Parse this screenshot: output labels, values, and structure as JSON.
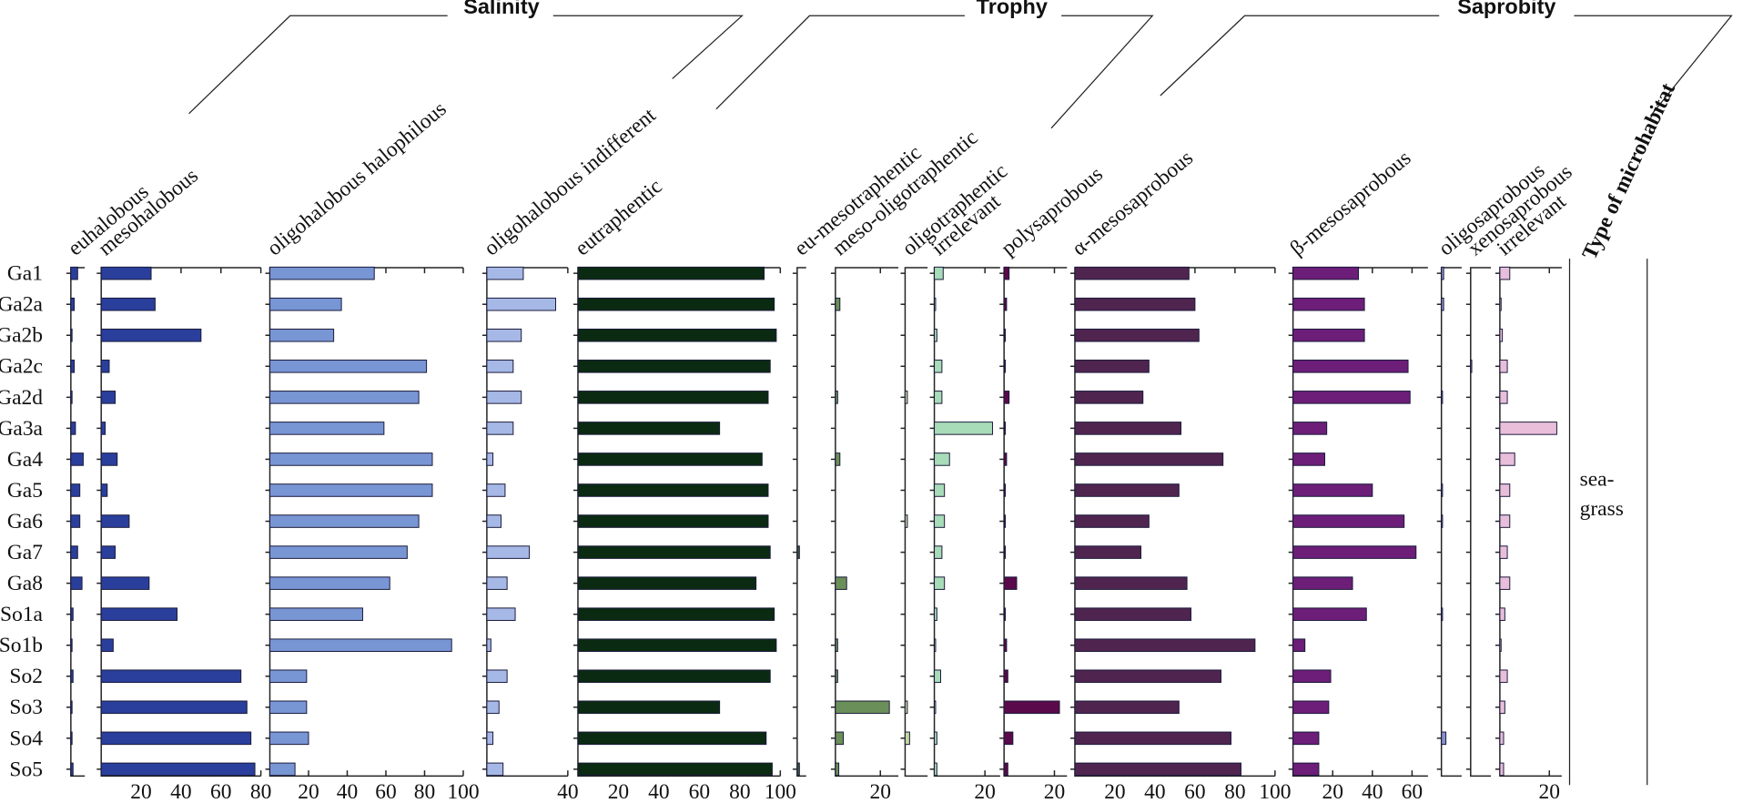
{
  "groups": [
    "Salinity",
    "Trophy",
    "Saprobity"
  ],
  "microhabitat": {
    "title": "Type of microhabitat",
    "label": [
      "sea-",
      "grass"
    ]
  },
  "chart_data": [
    {
      "type": "hbar",
      "title": "euhalobous",
      "color": "#2a3f9c",
      "xlim": [
        0,
        7
      ],
      "xticks": [],
      "categories": [
        "Ga1",
        "Ga2a",
        "Ga2b",
        "Ga2c",
        "Ga2d",
        "Ga3a",
        "Ga4",
        "Ga5",
        "Ga6",
        "Ga7",
        "Ga8",
        "So1a",
        "So1b",
        "So2",
        "So3",
        "So4",
        "So5"
      ],
      "values": [
        3.4,
        1.7,
        0.6,
        1.7,
        0.6,
        2.3,
        6.2,
        4.5,
        4.5,
        3.4,
        5.6,
        1.1,
        0.6,
        1.1,
        0.6,
        0.6,
        1.1
      ]
    },
    {
      "type": "hbar",
      "title": "mesohalobous",
      "color": "#2a3f9c",
      "xlim": [
        0,
        80
      ],
      "xticks": [
        20,
        40,
        60,
        80
      ],
      "values": [
        25,
        27,
        50,
        4,
        7,
        2,
        8,
        3,
        14,
        7,
        24,
        38,
        6,
        70,
        73,
        75,
        77
      ]
    },
    {
      "type": "hbar",
      "title": "oligohalobous halophilous",
      "color": "#7895d4",
      "xlim": [
        0,
        100
      ],
      "xticks": [
        20,
        40,
        60,
        80,
        100
      ],
      "values": [
        54,
        37,
        33,
        81,
        77,
        59,
        84,
        84,
        77,
        71,
        62,
        48,
        94,
        19,
        19,
        20,
        13
      ]
    },
    {
      "type": "hbar",
      "title": "oligohalobous indifferent",
      "color": "#a6b8e6",
      "xlim": [
        0,
        40
      ],
      "xticks": [
        40
      ],
      "values": [
        18,
        34,
        17,
        13,
        17,
        13,
        3,
        9,
        7,
        21,
        10,
        14,
        2,
        10,
        6,
        3,
        8
      ]
    },
    {
      "type": "hbar",
      "title": "eutraphentic",
      "color": "#0b2a12",
      "xlim": [
        0,
        100
      ],
      "xticks": [
        20,
        40,
        60,
        80,
        100
      ],
      "values": [
        92,
        97,
        98,
        95,
        94,
        70,
        91,
        94,
        94,
        95,
        88,
        97,
        98,
        95,
        70,
        93,
        96
      ]
    },
    {
      "type": "hbar",
      "title": "eu-mesotraphentic",
      "color": "#3c5a3a",
      "xlim": [
        0,
        4
      ],
      "xticks": [],
      "values": [
        0,
        0,
        0,
        0,
        0,
        0,
        0,
        0,
        0,
        1,
        0,
        0,
        0,
        0,
        0,
        0,
        1
      ]
    },
    {
      "type": "hbar",
      "title": "meso-oligotraphentic",
      "color": "#6b8f58",
      "xlim": [
        0,
        28
      ],
      "xticks": [
        20
      ],
      "values": [
        0,
        2,
        0,
        0,
        1,
        0,
        2,
        0,
        0,
        0,
        5,
        0,
        1,
        1,
        24,
        3.5,
        1.5
      ]
    },
    {
      "type": "hbar",
      "title": "oligotraphentic",
      "color": "#c4d89a",
      "xlim": [
        0,
        10
      ],
      "xticks": [],
      "values": [
        0,
        0,
        0,
        0,
        1,
        0,
        0,
        0,
        1,
        0,
        0,
        0,
        0,
        0,
        1,
        2,
        0
      ]
    },
    {
      "type": "hbar",
      "title": "irrelevant",
      "color": "#a8dbb8",
      "xlim": [
        0,
        26
      ],
      "xticks": [
        20
      ],
      "values": [
        3.5,
        0.5,
        1,
        3,
        3,
        23,
        6,
        4,
        4,
        3,
        4,
        1,
        0.5,
        2.5,
        0.5,
        1,
        1
      ]
    },
    {
      "type": "hbar",
      "title": "polysaprobous",
      "color": "#5a0a4a",
      "xlim": [
        0,
        25
      ],
      "xticks": [
        20
      ],
      "values": [
        2,
        1,
        0.5,
        0.5,
        2,
        0.5,
        1,
        0.5,
        0.5,
        0.5,
        5,
        0.5,
        1,
        1.5,
        22,
        3.5,
        1.5
      ]
    },
    {
      "type": "hbar",
      "title": "α-mesosaprobous",
      "color": "#4f2550",
      "xlim": [
        0,
        100
      ],
      "xticks": [
        20,
        40,
        60,
        80,
        100
      ],
      "values": [
        57,
        60,
        62,
        37,
        34,
        53,
        74,
        52,
        37,
        33,
        56,
        58,
        90,
        73,
        52,
        78,
        83
      ]
    },
    {
      "type": "hbar",
      "title": "β-mesosaprobous",
      "color": "#6c1e78",
      "xlim": [
        0,
        68
      ],
      "xticks": [
        20,
        40,
        60
      ],
      "values": [
        33,
        36,
        36,
        58,
        59,
        17,
        16,
        40,
        56,
        62,
        30,
        37,
        6,
        19,
        18,
        13,
        13
      ]
    },
    {
      "type": "hbar",
      "title": "oligosaprobous",
      "color": "#8890c8",
      "xlim": [
        0,
        9
      ],
      "xticks": [],
      "values": [
        1,
        1,
        0,
        0,
        0.5,
        0,
        0,
        0.5,
        0.5,
        0,
        0,
        0.5,
        0,
        0,
        0,
        2,
        0
      ]
    },
    {
      "type": "hbar",
      "title": "xenosaprobous",
      "color": "#9aa0d0",
      "xlim": [
        0,
        9
      ],
      "xticks": [],
      "values": [
        0,
        0,
        0,
        0.5,
        0,
        0,
        0,
        0,
        0,
        0,
        0,
        0,
        0,
        0,
        0,
        0,
        0
      ]
    },
    {
      "type": "hbar",
      "title": "irrelevant",
      "color": "#e8bedb",
      "xlim": [
        0,
        25
      ],
      "xticks": [
        20
      ],
      "values": [
        4,
        0.5,
        1,
        3,
        3,
        23,
        6,
        4,
        4,
        3,
        4,
        2,
        0.5,
        3,
        2,
        1.5,
        1.5
      ]
    }
  ]
}
